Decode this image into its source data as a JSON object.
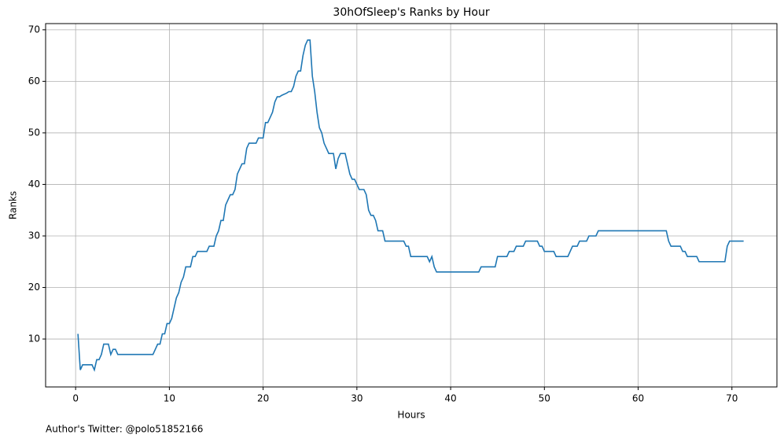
{
  "chart_data": {
    "type": "line",
    "title": "30hOfSleep's Ranks by Hour",
    "xlabel": "Hours",
    "ylabel": "Ranks",
    "footnote": "Author's Twitter: @polo51852166",
    "x": [
      0.25,
      0.5,
      0.75,
      1.25,
      1.5,
      1.75,
      2.0,
      2.25,
      2.5,
      2.75,
      3.0,
      3.5,
      3.75,
      4.0,
      4.25,
      4.5,
      5,
      6,
      7,
      8,
      8.25,
      8.5,
      8.75,
      9.0,
      9.25,
      9.5,
      9.75,
      10,
      10.25,
      10.5,
      10.75,
      11,
      11.25,
      11.5,
      11.75,
      12.25,
      12.5,
      12.75,
      13,
      14,
      14.25,
      14.75,
      15,
      15.25,
      15.5,
      15.75,
      16,
      16.25,
      16.5,
      16.75,
      17,
      17.25,
      17.5,
      17.75,
      18,
      18.25,
      18.5,
      19.25,
      19.5,
      20,
      20.25,
      20.5,
      20.75,
      21,
      21.25,
      21.5,
      21.75,
      22,
      22.5,
      22.75,
      23,
      23.25,
      23.5,
      23.75,
      24,
      24.25,
      24.5,
      24.75,
      25,
      25.25,
      25.5,
      25.75,
      26,
      26.25,
      26.5,
      26.75,
      27,
      27.5,
      27.75,
      28,
      28.25,
      28.75,
      29,
      29.25,
      29.5,
      29.75,
      30,
      30.25,
      30.75,
      31,
      31.25,
      31.5,
      31.75,
      32,
      32.25,
      32.75,
      33,
      35,
      35.25,
      35.5,
      35.75,
      37.5,
      37.75,
      38,
      38.25,
      38.5,
      43,
      43.25,
      44.75,
      45,
      46,
      46.25,
      46.75,
      47,
      47.75,
      48,
      49.25,
      49.5,
      49.75,
      50,
      51,
      51.25,
      52.5,
      53,
      53.5,
      53.75,
      54.5,
      54.75,
      55.5,
      55.75,
      63,
      63.25,
      63.5,
      64.5,
      64.75,
      65,
      65.25,
      66.25,
      66.5,
      69.25,
      69.5,
      69.75,
      71.25
    ],
    "series": [
      {
        "name": "Ranks",
        "color": "#1f77b4",
        "values": [
          11,
          4,
          5,
          5,
          5,
          5,
          4,
          6,
          6,
          7,
          9,
          9,
          7,
          8,
          8,
          7,
          7,
          7,
          7,
          7,
          7,
          8,
          9,
          9,
          11,
          11,
          13,
          13,
          14,
          16,
          18,
          19,
          21,
          22,
          24,
          24,
          26,
          26,
          27,
          27,
          28,
          28,
          30,
          31,
          33,
          33,
          36,
          37,
          38,
          38,
          39,
          42,
          43,
          44,
          44,
          47,
          48,
          48,
          49,
          49,
          52,
          52,
          53,
          54,
          56,
          57,
          57,
          57.3,
          57.7,
          58,
          58,
          59,
          61,
          62,
          62,
          65,
          67,
          68,
          68,
          61,
          58,
          54,
          51,
          50,
          48,
          47,
          46,
          46,
          43,
          45,
          46,
          46,
          44,
          42,
          41,
          41,
          40,
          39,
          39,
          38,
          35,
          34,
          34,
          33,
          31,
          31,
          29,
          29,
          28,
          28,
          26,
          26,
          25,
          26,
          24,
          23,
          23,
          24,
          24,
          26,
          26,
          27,
          27,
          28,
          28,
          29,
          29,
          28,
          28,
          27,
          27,
          26,
          26,
          28,
          28,
          29,
          29,
          30,
          30,
          31,
          31,
          29,
          28,
          28,
          27,
          27,
          26,
          26,
          25,
          25,
          28,
          29,
          29
        ]
      }
    ],
    "xlim": [
      -3.2,
      74.8
    ],
    "ylim": [
      0.7,
      71.2
    ],
    "xticks": [
      0,
      10,
      20,
      30,
      40,
      50,
      60,
      70
    ],
    "yticks": [
      10,
      20,
      30,
      40,
      50,
      60,
      70
    ],
    "grid": true
  }
}
